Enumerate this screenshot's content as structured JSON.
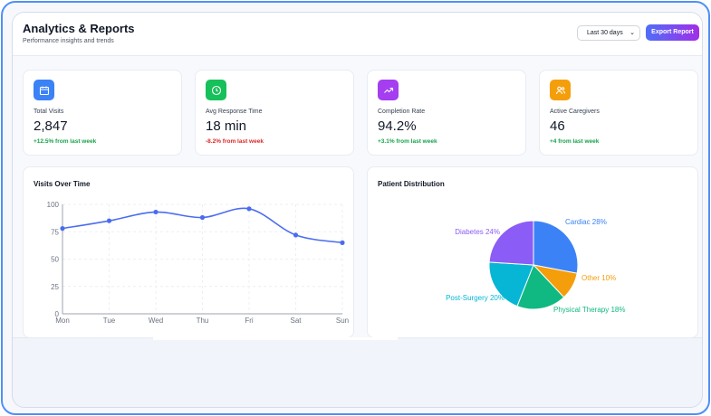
{
  "header": {
    "title": "Analytics & Reports",
    "subtitle": "Performance insights and trends",
    "date_range": "Last 30 days",
    "export_label": "Export Report"
  },
  "stats": [
    {
      "label": "Total Visits",
      "value": "2,847",
      "change": "+12.5% from last week",
      "icon": "calendar-icon",
      "color": "#3b82f6",
      "change_color": "#16a34a"
    },
    {
      "label": "Avg Response Time",
      "value": "18 min",
      "change": "-8.2% from last week",
      "icon": "clock-icon",
      "color": "#16c05a",
      "change_color": "#dc2626"
    },
    {
      "label": "Completion Rate",
      "value": "94.2%",
      "change": "+3.1% from last week",
      "icon": "trending-up-icon",
      "color": "#a43ef0",
      "change_color": "#16a34a"
    },
    {
      "label": "Active Caregivers",
      "value": "46",
      "change": "+4 from last week",
      "icon": "users-icon",
      "color": "#f59e0b",
      "change_color": "#16a34a"
    }
  ],
  "line_chart": {
    "title": "Visits Over Time"
  },
  "pie_chart": {
    "title": "Patient Distribution"
  },
  "chart_data": [
    {
      "type": "line",
      "title": "Visits Over Time",
      "categories": [
        "Mon",
        "Tue",
        "Wed",
        "Thu",
        "Fri",
        "Sat",
        "Sun"
      ],
      "values": [
        78,
        85,
        93,
        88,
        96,
        72,
        65
      ],
      "ylim": [
        0,
        100
      ],
      "yticks": [
        0,
        25,
        50,
        75,
        100
      ],
      "grid": true,
      "color": "#4a6cf0"
    },
    {
      "type": "pie",
      "title": "Patient Distribution",
      "slices": [
        {
          "name": "Cardiac",
          "value": 28,
          "label": "Cardiac 28%",
          "color": "#3b82f6"
        },
        {
          "name": "Other",
          "value": 10,
          "label": "Other 10%",
          "color": "#f59e0b"
        },
        {
          "name": "Physical Therapy",
          "value": 18,
          "label": "Physical Therapy 18%",
          "color": "#10b981"
        },
        {
          "name": "Post-Surgery",
          "value": 20,
          "label": "Post-Surgery 20%",
          "color": "#06b6d4"
        },
        {
          "name": "Diabetes",
          "value": 24,
          "label": "Diabetes 24%",
          "color": "#8b5cf6"
        }
      ]
    }
  ]
}
